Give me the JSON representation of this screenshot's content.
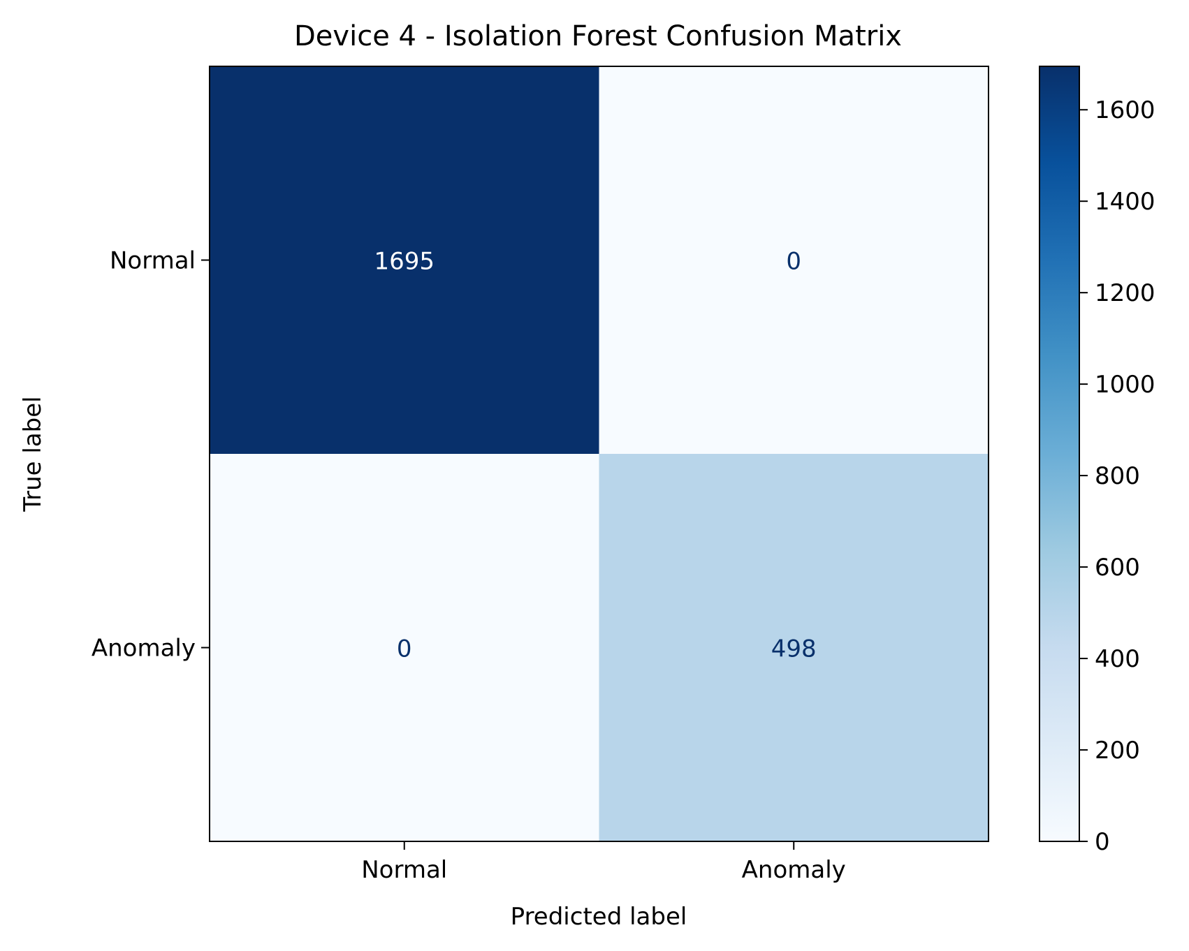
{
  "chart_data": {
    "type": "heatmap",
    "title": "Device 4 - Isolation Forest Confusion Matrix",
    "xlabel": "Predicted label",
    "ylabel": "True label",
    "x_categories": [
      "Normal",
      "Anomaly"
    ],
    "y_categories": [
      "Normal",
      "Anomaly"
    ],
    "values": [
      [
        1695,
        0
      ],
      [
        0,
        498
      ]
    ],
    "colormap": "Blues",
    "colorbar": {
      "min": 0,
      "max": 1695,
      "ticks": [
        0,
        200,
        400,
        600,
        800,
        1000,
        1200,
        1400,
        1600
      ]
    },
    "grid": false,
    "legend": "colorbar-right"
  }
}
